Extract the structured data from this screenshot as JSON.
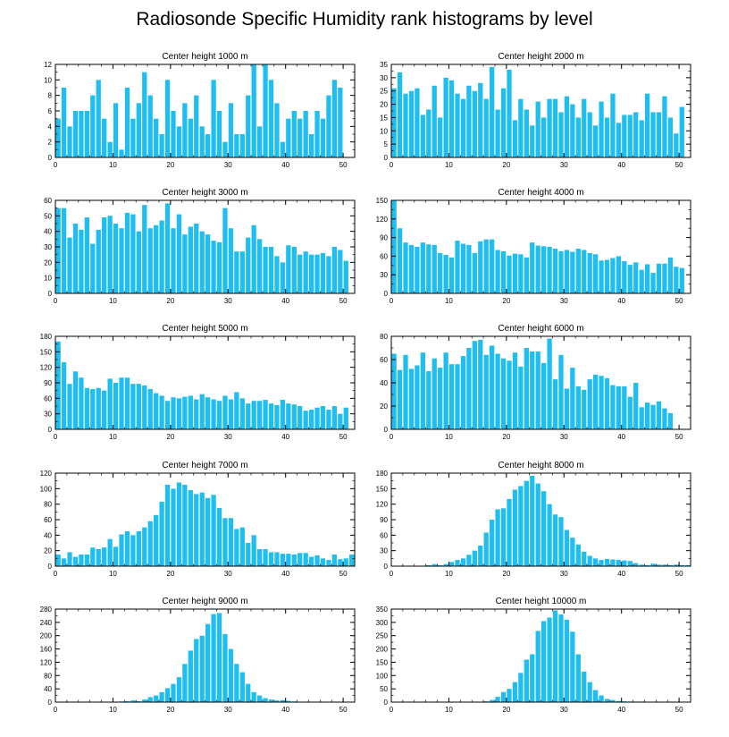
{
  "title": "Radiosonde Specific Humidity rank histograms by level",
  "bar_color": "#1fbef0",
  "chart_data": [
    {
      "type": "bar",
      "title": "Center height 1000 m",
      "xlim": [
        0,
        52
      ],
      "ylim": [
        0,
        12
      ],
      "xticks": [
        0,
        10,
        20,
        30,
        40,
        50
      ],
      "yticks": [
        0,
        2,
        4,
        6,
        8,
        10,
        12
      ],
      "values": [
        5,
        9,
        4,
        6,
        6,
        6,
        8,
        10,
        5,
        2,
        7,
        1,
        9,
        5,
        7,
        11,
        8,
        5,
        3,
        10,
        6,
        4,
        7,
        5,
        8,
        4,
        3,
        10,
        6,
        2,
        7,
        3,
        3,
        8,
        12,
        4,
        12,
        10,
        7,
        2,
        5,
        6,
        5,
        6,
        3,
        6,
        5,
        8,
        10,
        9
      ]
    },
    {
      "type": "bar",
      "title": "Center height 2000 m",
      "xlim": [
        0,
        52
      ],
      "ylim": [
        0,
        35
      ],
      "xticks": [
        0,
        10,
        20,
        30,
        40,
        50
      ],
      "yticks": [
        0,
        5,
        10,
        15,
        20,
        25,
        30,
        35
      ],
      "values": [
        26,
        32,
        24,
        25,
        26,
        16,
        18,
        27,
        15,
        30,
        29,
        24,
        22,
        27,
        25,
        28,
        22,
        34,
        18,
        26,
        33,
        14,
        22,
        18,
        12,
        21,
        15,
        22,
        22,
        17,
        23,
        20,
        15,
        22,
        17,
        12,
        21,
        15,
        24,
        13,
        16,
        16,
        17,
        14,
        24,
        17,
        17,
        23,
        15,
        9,
        19
      ]
    },
    {
      "type": "bar",
      "title": "Center height 3000 m",
      "xlim": [
        0,
        52
      ],
      "ylim": [
        0,
        60
      ],
      "xticks": [
        0,
        10,
        20,
        30,
        40,
        50
      ],
      "yticks": [
        0,
        10,
        20,
        30,
        40,
        50,
        60
      ],
      "values": [
        55,
        55,
        36,
        45,
        41,
        49,
        32,
        41,
        49,
        50,
        45,
        42,
        52,
        51,
        40,
        57,
        42,
        44,
        47,
        58,
        42,
        51,
        38,
        43,
        45,
        40,
        38,
        34,
        33,
        55,
        42,
        27,
        27,
        36,
        44,
        35,
        30,
        30,
        24,
        20,
        31,
        30,
        25,
        27,
        25,
        25,
        26,
        24,
        30,
        28,
        21
      ]
    },
    {
      "type": "bar",
      "title": "Center height 4000 m",
      "xlim": [
        0,
        52
      ],
      "ylim": [
        0,
        150
      ],
      "xticks": [
        0,
        10,
        20,
        30,
        40,
        50
      ],
      "yticks": [
        0,
        30,
        60,
        90,
        120,
        150
      ],
      "values": [
        150,
        105,
        82,
        78,
        75,
        82,
        79,
        78,
        65,
        62,
        58,
        85,
        80,
        78,
        65,
        84,
        87,
        87,
        70,
        68,
        61,
        64,
        63,
        58,
        82,
        77,
        76,
        75,
        72,
        68,
        70,
        67,
        72,
        70,
        65,
        63,
        53,
        54,
        57,
        60,
        52,
        46,
        50,
        38,
        47,
        33,
        48,
        48,
        58,
        43,
        41
      ]
    },
    {
      "type": "bar",
      "title": "Center height 5000 m",
      "xlim": [
        0,
        52
      ],
      "ylim": [
        0,
        180
      ],
      "xticks": [
        0,
        10,
        20,
        30,
        40,
        50
      ],
      "yticks": [
        0,
        30,
        60,
        90,
        120,
        150,
        180
      ],
      "values": [
        170,
        130,
        88,
        112,
        100,
        80,
        78,
        80,
        75,
        98,
        90,
        100,
        100,
        88,
        88,
        85,
        78,
        70,
        65,
        55,
        62,
        60,
        63,
        65,
        58,
        68,
        62,
        58,
        55,
        65,
        58,
        72,
        60,
        50,
        55,
        55,
        57,
        50,
        47,
        57,
        50,
        48,
        45,
        36,
        38,
        42,
        45,
        38,
        45,
        30,
        42
      ]
    },
    {
      "type": "bar",
      "title": "Center height 6000 m",
      "xlim": [
        0,
        52
      ],
      "ylim": [
        0,
        80
      ],
      "xticks": [
        0,
        10,
        20,
        30,
        40,
        50
      ],
      "yticks": [
        0,
        20,
        40,
        60,
        80
      ],
      "values": [
        65,
        51,
        64,
        52,
        55,
        66,
        50,
        61,
        53,
        66,
        56,
        56,
        63,
        70,
        76,
        77,
        64,
        72,
        65,
        61,
        59,
        66,
        54,
        70,
        67,
        67,
        57,
        78,
        43,
        64,
        35,
        53,
        37,
        34,
        43,
        47,
        46,
        44,
        38,
        37,
        37,
        28,
        40,
        19,
        23,
        21,
        24,
        18,
        14
      ]
    },
    {
      "type": "bar",
      "title": "Center height 7000 m",
      "xlim": [
        0,
        52
      ],
      "ylim": [
        0,
        120
      ],
      "xticks": [
        0,
        10,
        20,
        30,
        40,
        50
      ],
      "yticks": [
        0,
        20,
        40,
        60,
        80,
        100,
        120
      ],
      "values": [
        15,
        10,
        18,
        12,
        15,
        15,
        24,
        22,
        24,
        35,
        25,
        41,
        45,
        40,
        45,
        50,
        58,
        66,
        83,
        105,
        100,
        108,
        105,
        98,
        93,
        95,
        88,
        92,
        75,
        62,
        62,
        48,
        50,
        30,
        40,
        22,
        22,
        18,
        18,
        16,
        16,
        15,
        17,
        17,
        12,
        14,
        10,
        8,
        15,
        9,
        10,
        15
      ]
    },
    {
      "type": "bar",
      "title": "Center height 8000 m",
      "xlim": [
        0,
        52
      ],
      "ylim": [
        0,
        180
      ],
      "xticks": [
        0,
        10,
        20,
        30,
        40,
        50
      ],
      "yticks": [
        0,
        30,
        60,
        90,
        120,
        150,
        180
      ],
      "values": [
        0,
        0,
        0,
        0,
        0,
        0,
        2,
        4,
        2,
        4,
        8,
        12,
        15,
        22,
        30,
        40,
        65,
        90,
        110,
        112,
        130,
        148,
        155,
        165,
        175,
        160,
        145,
        120,
        100,
        95,
        70,
        55,
        42,
        28,
        20,
        15,
        12,
        14,
        13,
        12,
        11,
        10,
        6,
        3,
        2,
        5,
        3,
        3,
        2,
        3,
        2,
        2
      ]
    },
    {
      "type": "bar",
      "title": "Center height 9000 m",
      "xlim": [
        0,
        52
      ],
      "ylim": [
        0,
        280
      ],
      "xticks": [
        0,
        10,
        20,
        30,
        40,
        50
      ],
      "yticks": [
        0,
        40,
        80,
        120,
        160,
        200,
        240,
        280
      ],
      "values": [
        0,
        0,
        0,
        0,
        0,
        0,
        0,
        0,
        0,
        0,
        0,
        2,
        3,
        5,
        3,
        8,
        15,
        20,
        30,
        42,
        55,
        75,
        115,
        155,
        190,
        200,
        235,
        265,
        268,
        205,
        160,
        115,
        90,
        55,
        30,
        20,
        12,
        8,
        5,
        6,
        4,
        2,
        1,
        1,
        1,
        0,
        0,
        0,
        0,
        0,
        0,
        0
      ]
    },
    {
      "type": "bar",
      "title": "Center height 10000 m",
      "xlim": [
        0,
        52
      ],
      "ylim": [
        0,
        350
      ],
      "xticks": [
        0,
        10,
        20,
        30,
        40,
        50
      ],
      "yticks": [
        0,
        50,
        100,
        150,
        200,
        250,
        300,
        350
      ],
      "values": [
        0,
        0,
        0,
        0,
        0,
        0,
        0,
        0,
        0,
        0,
        0,
        0,
        0,
        0,
        0,
        1,
        3,
        8,
        20,
        38,
        50,
        75,
        110,
        160,
        180,
        268,
        305,
        318,
        345,
        330,
        310,
        265,
        180,
        115,
        75,
        45,
        25,
        12,
        8,
        4,
        3,
        2,
        2,
        2,
        1,
        1,
        0,
        0,
        0,
        0,
        0,
        0
      ]
    }
  ]
}
